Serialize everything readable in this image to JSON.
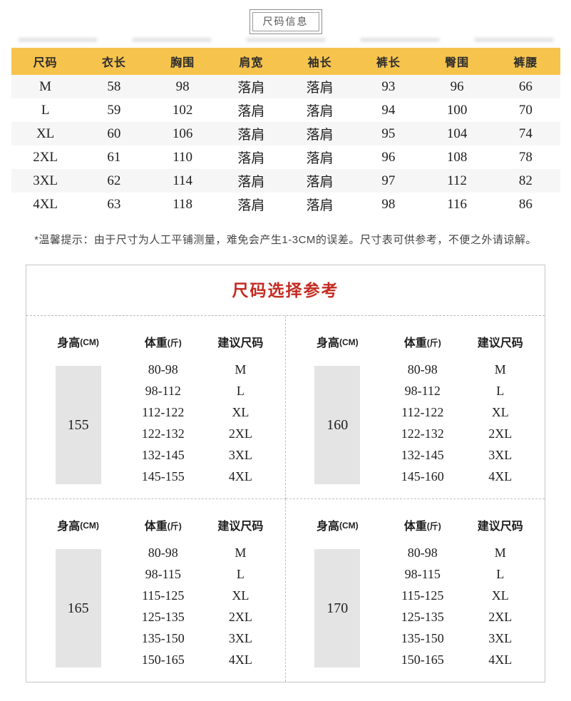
{
  "badge": {
    "label": "尺码信息"
  },
  "colors": {
    "table_header_bg": "#F6C34C",
    "row_stripe": "#F6F6F6",
    "title_red": "#C42B22",
    "height_box_bg": "#E4E4E4",
    "box_border": "#C5C5C5"
  },
  "size_table": {
    "columns": [
      "尺码",
      "衣长",
      "胸围",
      "肩宽",
      "袖长",
      "裤长",
      "臀围",
      "裤腰"
    ],
    "rows": [
      {
        "cells": [
          "M",
          "58",
          "98",
          "落肩",
          "落肩",
          "93",
          "96",
          "66"
        ]
      },
      {
        "cells": [
          "L",
          "59",
          "102",
          "落肩",
          "落肩",
          "94",
          "100",
          "70"
        ]
      },
      {
        "cells": [
          "XL",
          "60",
          "106",
          "落肩",
          "落肩",
          "95",
          "104",
          "74"
        ]
      },
      {
        "cells": [
          "2XL",
          "61",
          "110",
          "落肩",
          "落肩",
          "96",
          "108",
          "78"
        ]
      },
      {
        "cells": [
          "3XL",
          "62",
          "114",
          "落肩",
          "落肩",
          "97",
          "112",
          "82"
        ]
      },
      {
        "cells": [
          "4XL",
          "63",
          "118",
          "落肩",
          "落肩",
          "98",
          "116",
          "86"
        ]
      }
    ]
  },
  "note": {
    "text": "*温馨提示：由于尺寸为人工平铺测量，难免会产生1-3CM的误差。尺寸表可供参考，不便之外请谅解。"
  },
  "reference": {
    "title": "尺码选择参考",
    "headers": {
      "height": "身高",
      "height_unit": "(CM)",
      "weight": "体重",
      "weight_unit": "(斤)",
      "size": "建议尺码"
    },
    "quadrants": [
      {
        "height": "155",
        "rows": [
          {
            "weight": "80-98",
            "size": "M"
          },
          {
            "weight": "98-112",
            "size": "L"
          },
          {
            "weight": "112-122",
            "size": "XL"
          },
          {
            "weight": "122-132",
            "size": "2XL"
          },
          {
            "weight": "132-145",
            "size": "3XL"
          },
          {
            "weight": "145-155",
            "size": "4XL"
          }
        ]
      },
      {
        "height": "160",
        "rows": [
          {
            "weight": "80-98",
            "size": "M"
          },
          {
            "weight": "98-112",
            "size": "L"
          },
          {
            "weight": "112-122",
            "size": "XL"
          },
          {
            "weight": "122-132",
            "size": "2XL"
          },
          {
            "weight": "132-145",
            "size": "3XL"
          },
          {
            "weight": "145-160",
            "size": "4XL"
          }
        ]
      },
      {
        "height": "165",
        "rows": [
          {
            "weight": "80-98",
            "size": "M"
          },
          {
            "weight": "98-115",
            "size": "L"
          },
          {
            "weight": "115-125",
            "size": "XL"
          },
          {
            "weight": "125-135",
            "size": "2XL"
          },
          {
            "weight": "135-150",
            "size": "3XL"
          },
          {
            "weight": "150-165",
            "size": "4XL"
          }
        ]
      },
      {
        "height": "170",
        "rows": [
          {
            "weight": "80-98",
            "size": "M"
          },
          {
            "weight": "98-115",
            "size": "L"
          },
          {
            "weight": "115-125",
            "size": "XL"
          },
          {
            "weight": "125-135",
            "size": "2XL"
          },
          {
            "weight": "135-150",
            "size": "3XL"
          },
          {
            "weight": "150-165",
            "size": "4XL"
          }
        ]
      }
    ]
  }
}
